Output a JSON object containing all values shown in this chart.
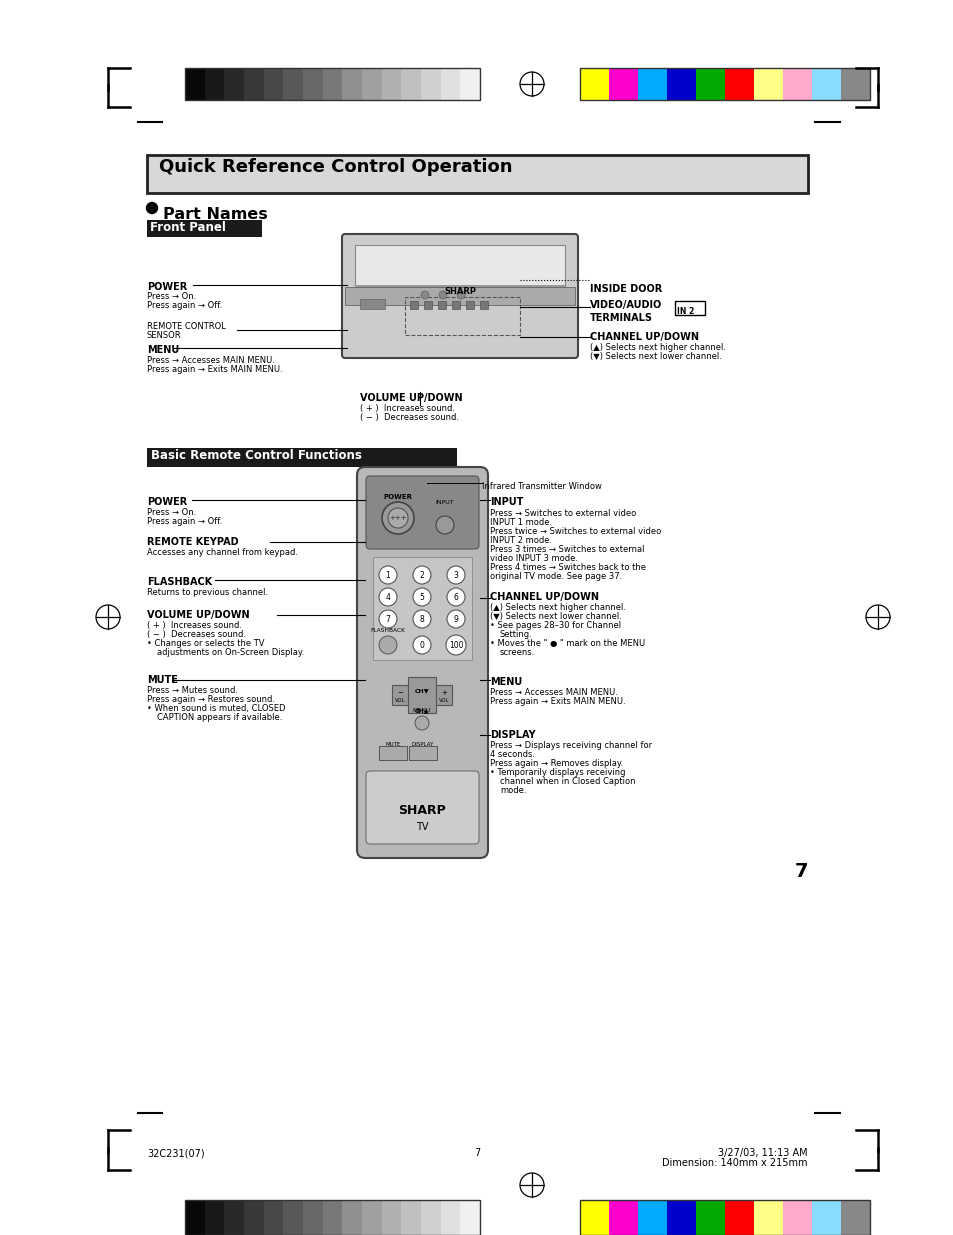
{
  "page_bg": "#ffffff",
  "title_text": "Quick Reference Control Operation",
  "title_bg": "#d8d8d8",
  "title_border": "#222222",
  "title_fontsize": 13,
  "part_names_text": "Part Names",
  "front_panel_text": "Front Panel",
  "front_panel_bg": "#1a1a1a",
  "front_panel_fg": "#ffffff",
  "basic_remote_text": "Basic Remote Control Functions",
  "basic_remote_bg": "#1a1a1a",
  "basic_remote_fg": "#ffffff",
  "gray_bar_colors": [
    "#080808",
    "#181818",
    "#282828",
    "#383838",
    "#484848",
    "#585858",
    "#686868",
    "#787878",
    "#909090",
    "#a0a0a0",
    "#b0b0b0",
    "#c0c0c0",
    "#d0d0d0",
    "#e0e0e0",
    "#f0f0f0"
  ],
  "color_bar_colors": [
    "#ffff00",
    "#ff00cc",
    "#00aaff",
    "#0000cc",
    "#00aa00",
    "#ff0000",
    "#ffff88",
    "#ffaacc",
    "#88ddff",
    "#888888"
  ],
  "footer_left": "32C231(07)",
  "footer_center": "7",
  "footer_right_line1": "3/27/03, 11:13 AM",
  "footer_right_line2": "Dimension: 140mm x 215mm",
  "page_number": "7"
}
